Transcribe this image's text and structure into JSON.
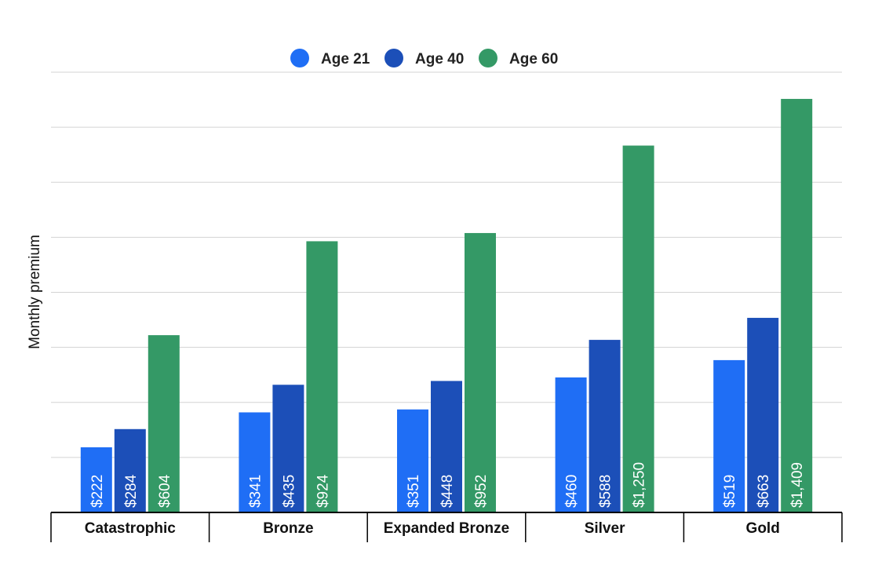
{
  "chart_data": {
    "type": "bar",
    "title": "",
    "xlabel": "",
    "ylabel": "Monthly premium",
    "ylim": [
      0,
      1500
    ],
    "grid": true,
    "legend_position": "top-center",
    "categories": [
      "Catastrophic",
      "Bronze",
      "Expanded Bronze",
      "Silver",
      "Gold"
    ],
    "series": [
      {
        "name": "Age 21",
        "color": "#1f6ef5",
        "values": [
          222,
          341,
          351,
          460,
          519
        ],
        "labels": [
          "$222",
          "$341",
          "$351",
          "$460",
          "$519"
        ]
      },
      {
        "name": "Age 40",
        "color": "#1c4fb8",
        "values": [
          284,
          435,
          448,
          588,
          663
        ],
        "labels": [
          "$284",
          "$435",
          "$448",
          "$588",
          "$663"
        ]
      },
      {
        "name": "Age 60",
        "color": "#349966",
        "values": [
          604,
          924,
          952,
          1250,
          1409
        ],
        "labels": [
          "$604",
          "$924",
          "$952",
          "$1,250",
          "$1,409"
        ]
      }
    ]
  }
}
